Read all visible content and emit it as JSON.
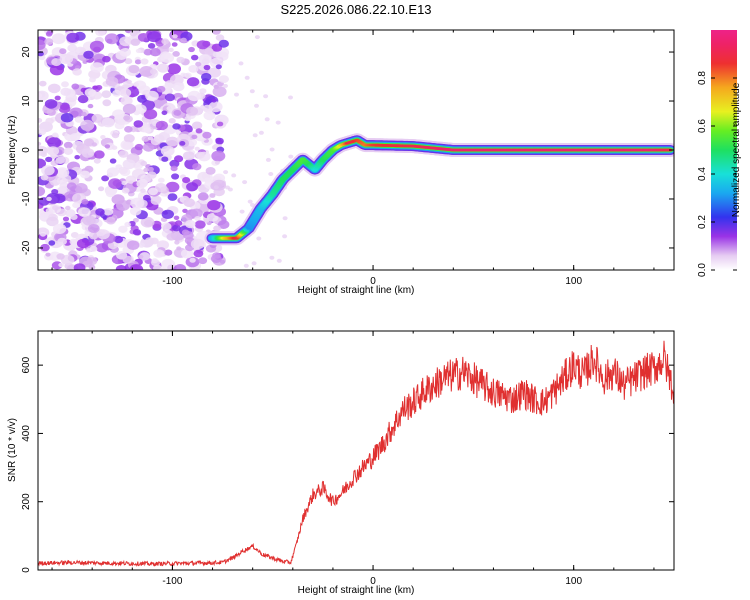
{
  "title": "S225.2026.086.22.10.E13",
  "chart_data": [
    {
      "type": "heatmap",
      "name": "spectrogram",
      "xlabel": "Height of straight line (km)",
      "ylabel": "Frequency (Hz)",
      "xlim": [
        -167,
        150
      ],
      "ylim": [
        -24.5,
        24.5
      ],
      "xticks": [
        -100,
        0,
        100
      ],
      "xtick_labels": [
        "-100",
        "0",
        "100"
      ],
      "yticks": [
        -20,
        -10,
        0,
        10,
        20
      ],
      "ytick_labels": [
        "-20",
        "-10",
        "0",
        "10",
        "20"
      ],
      "noise_region_x": [
        -167,
        -80
      ],
      "ridge": {
        "x": [
          -80,
          -74,
          -68,
          -62,
          -56,
          -50,
          -45,
          -40,
          -35,
          -32,
          -29,
          -25,
          -20,
          -16,
          -12,
          -8,
          -4,
          0,
          20,
          40,
          60,
          80,
          100,
          120,
          140,
          148
        ],
        "freq": [
          -18,
          -18,
          -18,
          -16,
          -12,
          -9,
          -6,
          -4,
          -2,
          -3,
          -4,
          -2,
          0,
          1,
          1.5,
          2,
          1,
          1,
          0.8,
          0,
          0,
          0,
          0,
          0,
          0,
          0
        ],
        "amplitude": [
          0.35,
          0.7,
          0.9,
          0.3,
          0.35,
          0.45,
          0.5,
          0.5,
          0.55,
          0.5,
          0.4,
          0.5,
          0.55,
          0.7,
          0.9,
          0.85,
          0.8,
          0.85,
          0.9,
          0.95,
          0.95,
          0.95,
          0.95,
          0.95,
          0.95,
          0.9
        ]
      }
    },
    {
      "type": "colorbar",
      "name": "amplitude-colorbar",
      "label": "Normalized spectral amplitude",
      "range": [
        0,
        1
      ],
      "ticks": [
        0.0,
        0.2,
        0.4,
        0.6,
        0.8
      ],
      "tick_labels": [
        "0.0",
        "0.2",
        "0.4",
        "0.6",
        "0.8"
      ]
    },
    {
      "type": "line",
      "name": "snr",
      "xlabel": "Height of straight line (km)",
      "ylabel": "SNR (10 * v/v)",
      "xlim": [
        -167,
        150
      ],
      "ylim": [
        0,
        700
      ],
      "xticks": [
        -100,
        0,
        100
      ],
      "xtick_labels": [
        "-100",
        "0",
        "100"
      ],
      "yticks": [
        0,
        200,
        400,
        600
      ],
      "ytick_labels": [
        "0",
        "200",
        "400",
        "600"
      ],
      "color": "#e03030",
      "x": [
        -167,
        -150,
        -130,
        -110,
        -90,
        -75,
        -70,
        -65,
        -60,
        -55,
        -50,
        -45,
        -41,
        -38,
        -35,
        -30,
        -25,
        -20,
        -15,
        -10,
        -5,
        0,
        5,
        10,
        15,
        20,
        25,
        30,
        35,
        40,
        45,
        50,
        55,
        60,
        65,
        70,
        75,
        80,
        85,
        90,
        95,
        100,
        105,
        110,
        115,
        120,
        125,
        130,
        135,
        140,
        145,
        150
      ],
      "y": [
        20,
        22,
        20,
        18,
        20,
        22,
        35,
        55,
        70,
        45,
        35,
        25,
        22,
        80,
        150,
        220,
        240,
        200,
        230,
        270,
        300,
        330,
        370,
        420,
        470,
        490,
        520,
        540,
        560,
        570,
        580,
        560,
        540,
        520,
        510,
        500,
        520,
        500,
        490,
        520,
        560,
        600,
        570,
        620,
        560,
        580,
        540,
        560,
        580,
        590,
        620,
        520
      ]
    }
  ]
}
